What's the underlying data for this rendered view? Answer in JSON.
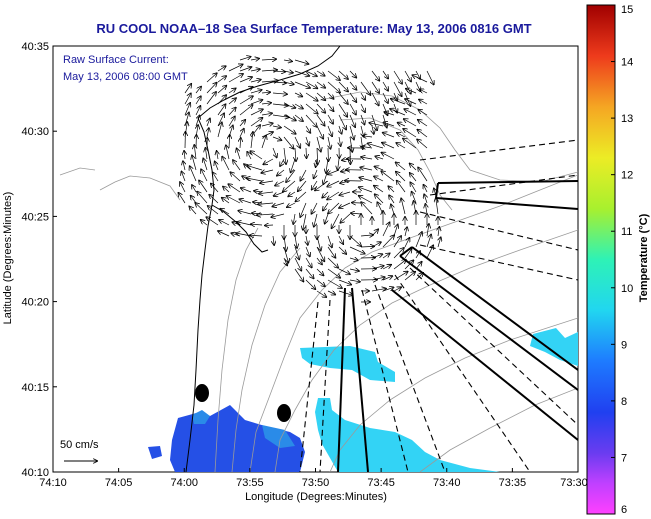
{
  "chart_data": {
    "type": "map",
    "title": "RU COOL  NOAA–18  Sea Surface Temperature:  May 13, 2006 0816 GMT",
    "annotation_lines": [
      "Raw Surface Current:",
      "May 13, 2006 08:00 GMT"
    ],
    "xlabel": "Longitude (Degrees:Minutes)",
    "ylabel": "Latitude (Degrees:Minutes)",
    "x_ticks": [
      "74:10",
      "74:05",
      "74:00",
      "73:55",
      "73:50",
      "73:45",
      "73:40",
      "73:35",
      "73:30"
    ],
    "y_ticks": [
      "40:10",
      "40:15",
      "40:20",
      "40:25",
      "40:30",
      "40:35"
    ],
    "xlim_min": [
      -74.1667,
      -73.5
    ],
    "ylim_min": [
      40.1667,
      40.5833
    ],
    "scale_label": "50 cm/s",
    "colorbar": {
      "label": "Temperature (°C)",
      "min": 6,
      "max": 15,
      "ticks": [
        6,
        7,
        8,
        9,
        10,
        11,
        12,
        13,
        14,
        15
      ],
      "colormap": "jet"
    },
    "colors": {
      "title": "#1a1a9c",
      "sst_warm": "#33d3f5",
      "sst_cool": "#2550e6",
      "grid": "#000000"
    }
  }
}
